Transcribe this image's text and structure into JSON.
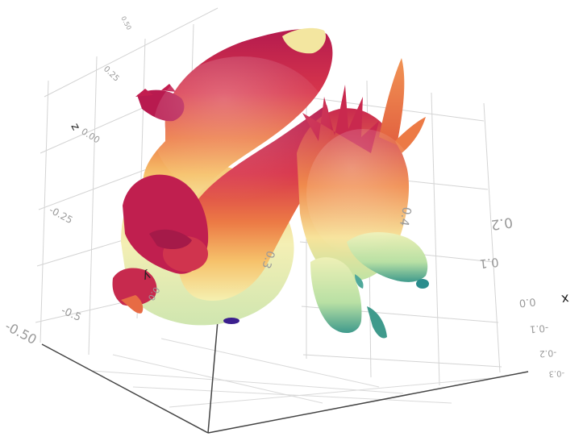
{
  "chart_data": {
    "type": "surface3d",
    "title": "",
    "subject": "Stanford dragon mesh",
    "colormap": "Spectral (height-mapped)",
    "colormap_stops": [
      "#3b1f8e",
      "#2a8c8c",
      "#a8d89c",
      "#f5f0b0",
      "#f6c26b",
      "#ec7a45",
      "#d8364c",
      "#b41a4e"
    ],
    "axes": {
      "x": {
        "label": "x",
        "ticks": [
          "0.2",
          "0.1",
          "0.0",
          "-0.1",
          "-0.2",
          "-0.3"
        ]
      },
      "y": {
        "label": "y",
        "ticks": [
          "0.4",
          "0.3",
          "0.0"
        ]
      },
      "z": {
        "label": "z",
        "ticks": [
          "0.50",
          "0.25",
          "0.00",
          "-0.25",
          "-0.5",
          "-0.50"
        ]
      }
    },
    "grid": true,
    "legend": "none"
  }
}
